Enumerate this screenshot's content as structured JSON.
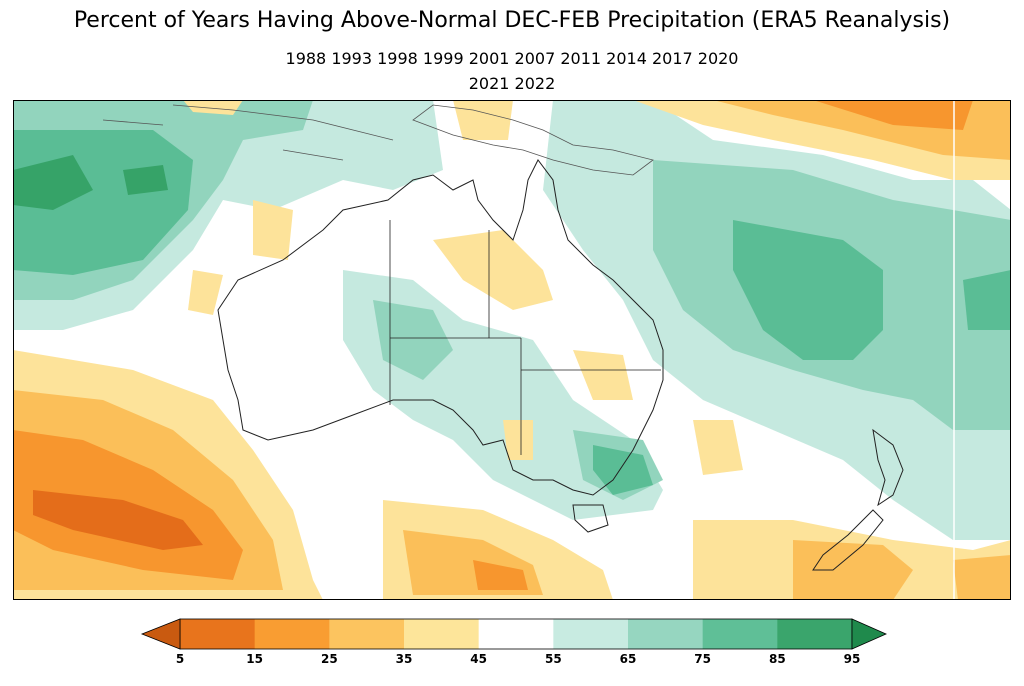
{
  "title": "Percent of Years Having Above-Normal DEC-FEB Precipitation (ERA5 Reanalysis)",
  "subtitle_line1": "1988 1993 1998 1999 2001 2007 2011 2014 2017 2020",
  "subtitle_line2": "2021 2022",
  "colorbar": {
    "ticks": [
      "5",
      "15",
      "25",
      "35",
      "45",
      "55",
      "65",
      "75",
      "85",
      "95"
    ],
    "colors": [
      "#c95a10",
      "#e8741c",
      "#f99d32",
      "#fcc45f",
      "#fde59a",
      "#ffffff",
      "#c8ebe1",
      "#96d6c0",
      "#5fbf97",
      "#3aa56c",
      "#1f8a4c"
    ]
  },
  "map_colors": {
    "c5": "#e46d1a",
    "c15": "#f7962e",
    "c25": "#fbbf59",
    "c35": "#fde39a",
    "c65": "#c5e9df",
    "c75": "#92d4bd",
    "c85": "#5abd95",
    "c95": "#36a368",
    "c99": "#218a4c",
    "land_outline": "#222222",
    "border": "#000000"
  }
}
